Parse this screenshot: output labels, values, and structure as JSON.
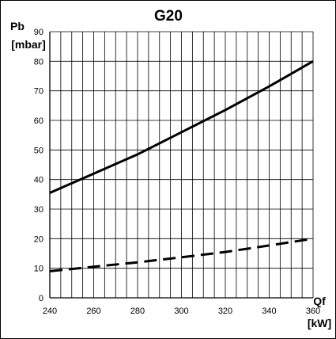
{
  "chart_data": {
    "type": "line",
    "title": "G20",
    "ylabel": "Pb",
    "yunit": "[mbar]",
    "xlabel": "Qf",
    "xunit": "[kW]",
    "xlim": [
      240,
      360
    ],
    "ylim": [
      0,
      90
    ],
    "xticks": [
      "240",
      "260",
      "280",
      "300",
      "320",
      "340",
      "360"
    ],
    "yticks": [
      "0",
      "10",
      "20",
      "30",
      "40",
      "50",
      "60",
      "70",
      "80",
      "90"
    ],
    "grid": {
      "x_step": 5,
      "y_step": 10
    },
    "series": [
      {
        "style": "solid",
        "color": "#000000",
        "x": [
          240,
          260,
          280,
          300,
          320,
          340,
          360
        ],
        "y": [
          35.5,
          42,
          48.5,
          56,
          63.5,
          71.5,
          80
        ]
      },
      {
        "style": "dashed",
        "color": "#000000",
        "x": [
          240,
          260,
          280,
          300,
          320,
          340,
          360
        ],
        "y": [
          9,
          10.5,
          12,
          13.7,
          15.5,
          17.7,
          20
        ]
      }
    ]
  }
}
